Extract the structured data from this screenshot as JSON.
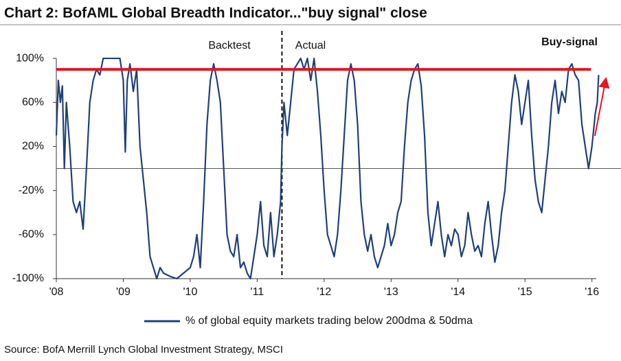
{
  "chart_data": {
    "type": "line",
    "title": "Chart 2: BofAML Global Breadth Indicator...\"buy signal\" close",
    "annotations": [
      "Backtest",
      "Actual",
      "Buy-signal"
    ],
    "source": "Source: BofA Merrill Lynch Global Investment Strategy, MSCI",
    "x": [
      2008.0,
      2008.03,
      2008.06,
      2008.09,
      2008.12,
      2008.15,
      2008.2,
      2008.25,
      2008.3,
      2008.35,
      2008.4,
      2008.45,
      2008.5,
      2008.55,
      2008.6,
      2008.65,
      2008.7,
      2008.8,
      2008.9,
      2008.95,
      2009.0,
      2009.03,
      2009.06,
      2009.1,
      2009.15,
      2009.2,
      2009.25,
      2009.3,
      2009.35,
      2009.4,
      2009.45,
      2009.5,
      2009.55,
      2009.6,
      2009.7,
      2009.8,
      2009.9,
      2010.0,
      2010.05,
      2010.1,
      2010.15,
      2010.2,
      2010.25,
      2010.3,
      2010.35,
      2010.4,
      2010.45,
      2010.5,
      2010.55,
      2010.6,
      2010.65,
      2010.7,
      2010.75,
      2010.8,
      2010.85,
      2010.9,
      2010.95,
      2011.0,
      2011.05,
      2011.1,
      2011.15,
      2011.2,
      2011.25,
      2011.3,
      2011.35,
      2011.37,
      2011.4,
      2011.45,
      2011.5,
      2011.55,
      2011.6,
      2011.65,
      2011.7,
      2011.75,
      2011.8,
      2011.85,
      2011.9,
      2011.95,
      2012.0,
      2012.05,
      2012.1,
      2012.15,
      2012.2,
      2012.25,
      2012.3,
      2012.35,
      2012.4,
      2012.45,
      2012.5,
      2012.55,
      2012.6,
      2012.65,
      2012.7,
      2012.75,
      2012.8,
      2012.85,
      2012.9,
      2012.95,
      2013.0,
      2013.05,
      2013.1,
      2013.15,
      2013.2,
      2013.25,
      2013.3,
      2013.35,
      2013.4,
      2013.45,
      2013.5,
      2013.55,
      2013.6,
      2013.65,
      2013.7,
      2013.75,
      2013.8,
      2013.85,
      2013.9,
      2013.95,
      2014.0,
      2014.05,
      2014.1,
      2014.15,
      2014.2,
      2014.25,
      2014.3,
      2014.35,
      2014.4,
      2014.45,
      2014.5,
      2014.55,
      2014.6,
      2014.65,
      2014.7,
      2014.75,
      2014.8,
      2014.85,
      2014.9,
      2014.95,
      2015.0,
      2015.05,
      2015.1,
      2015.15,
      2015.2,
      2015.25,
      2015.3,
      2015.35,
      2015.4,
      2015.45,
      2015.5,
      2015.55,
      2015.6,
      2015.65,
      2015.7,
      2015.75,
      2015.8,
      2015.85,
      2015.9,
      2015.95,
      2016.0,
      2016.05,
      2016.08,
      2016.1
    ],
    "series": [
      {
        "name": "% of global equity markets trading below 200dma & 50dma",
        "color": "#1f3f7a",
        "values": [
          30,
          80,
          60,
          75,
          0,
          60,
          20,
          -30,
          -40,
          -30,
          -55,
          0,
          60,
          80,
          90,
          85,
          100,
          100,
          100,
          100,
          80,
          15,
          80,
          95,
          70,
          90,
          20,
          -10,
          -40,
          -80,
          -90,
          -100,
          -90,
          -95,
          -98,
          -100,
          -95,
          -90,
          -80,
          -60,
          -90,
          -30,
          40,
          80,
          95,
          80,
          60,
          0,
          -60,
          -75,
          -80,
          -60,
          -90,
          -85,
          -95,
          -100,
          -80,
          -60,
          -30,
          -70,
          -80,
          -40,
          -80,
          -60,
          -30,
          20,
          60,
          30,
          60,
          90,
          95,
          100,
          90,
          100,
          80,
          100,
          70,
          30,
          -20,
          -60,
          -70,
          -80,
          -60,
          -20,
          30,
          80,
          95,
          80,
          40,
          -30,
          -60,
          -75,
          -60,
          -80,
          -90,
          -80,
          -70,
          -50,
          -70,
          -60,
          -40,
          -30,
          20,
          60,
          80,
          90,
          95,
          75,
          30,
          -40,
          -70,
          -50,
          -30,
          -60,
          -80,
          -60,
          -70,
          -55,
          -60,
          -80,
          -70,
          -40,
          -60,
          -75,
          -70,
          -80,
          -50,
          -30,
          -60,
          -85,
          -70,
          -40,
          -20,
          20,
          60,
          85,
          70,
          40,
          60,
          80,
          30,
          -10,
          -30,
          -40,
          -10,
          20,
          60,
          80,
          50,
          70,
          60,
          90,
          95,
          85,
          80,
          40,
          20,
          0,
          20,
          50,
          60,
          85
        ]
      }
    ],
    "reference_line": {
      "value": 90,
      "color": "#e8141b"
    },
    "divider_x": 2011.37,
    "xlim": [
      2008,
      2016.27
    ],
    "xticks": [
      {
        "value": 2008,
        "label": "'08"
      },
      {
        "value": 2009,
        "label": "'09"
      },
      {
        "value": 2010,
        "label": "'10"
      },
      {
        "value": 2011,
        "label": "'11"
      },
      {
        "value": 2012,
        "label": "'12"
      },
      {
        "value": 2013,
        "label": "'13"
      },
      {
        "value": 2014,
        "label": "'14"
      },
      {
        "value": 2015,
        "label": "'15"
      },
      {
        "value": 2016,
        "label": "'16"
      }
    ],
    "ylim": [
      -100,
      115
    ],
    "yticks": [
      {
        "value": -100,
        "label": "-100%"
      },
      {
        "value": -60,
        "label": "-60%"
      },
      {
        "value": -20,
        "label": "-20%"
      },
      {
        "value": 20,
        "label": "20%"
      },
      {
        "value": 60,
        "label": "60%"
      },
      {
        "value": 100,
        "label": "100%"
      }
    ],
    "zero_line": 0
  }
}
